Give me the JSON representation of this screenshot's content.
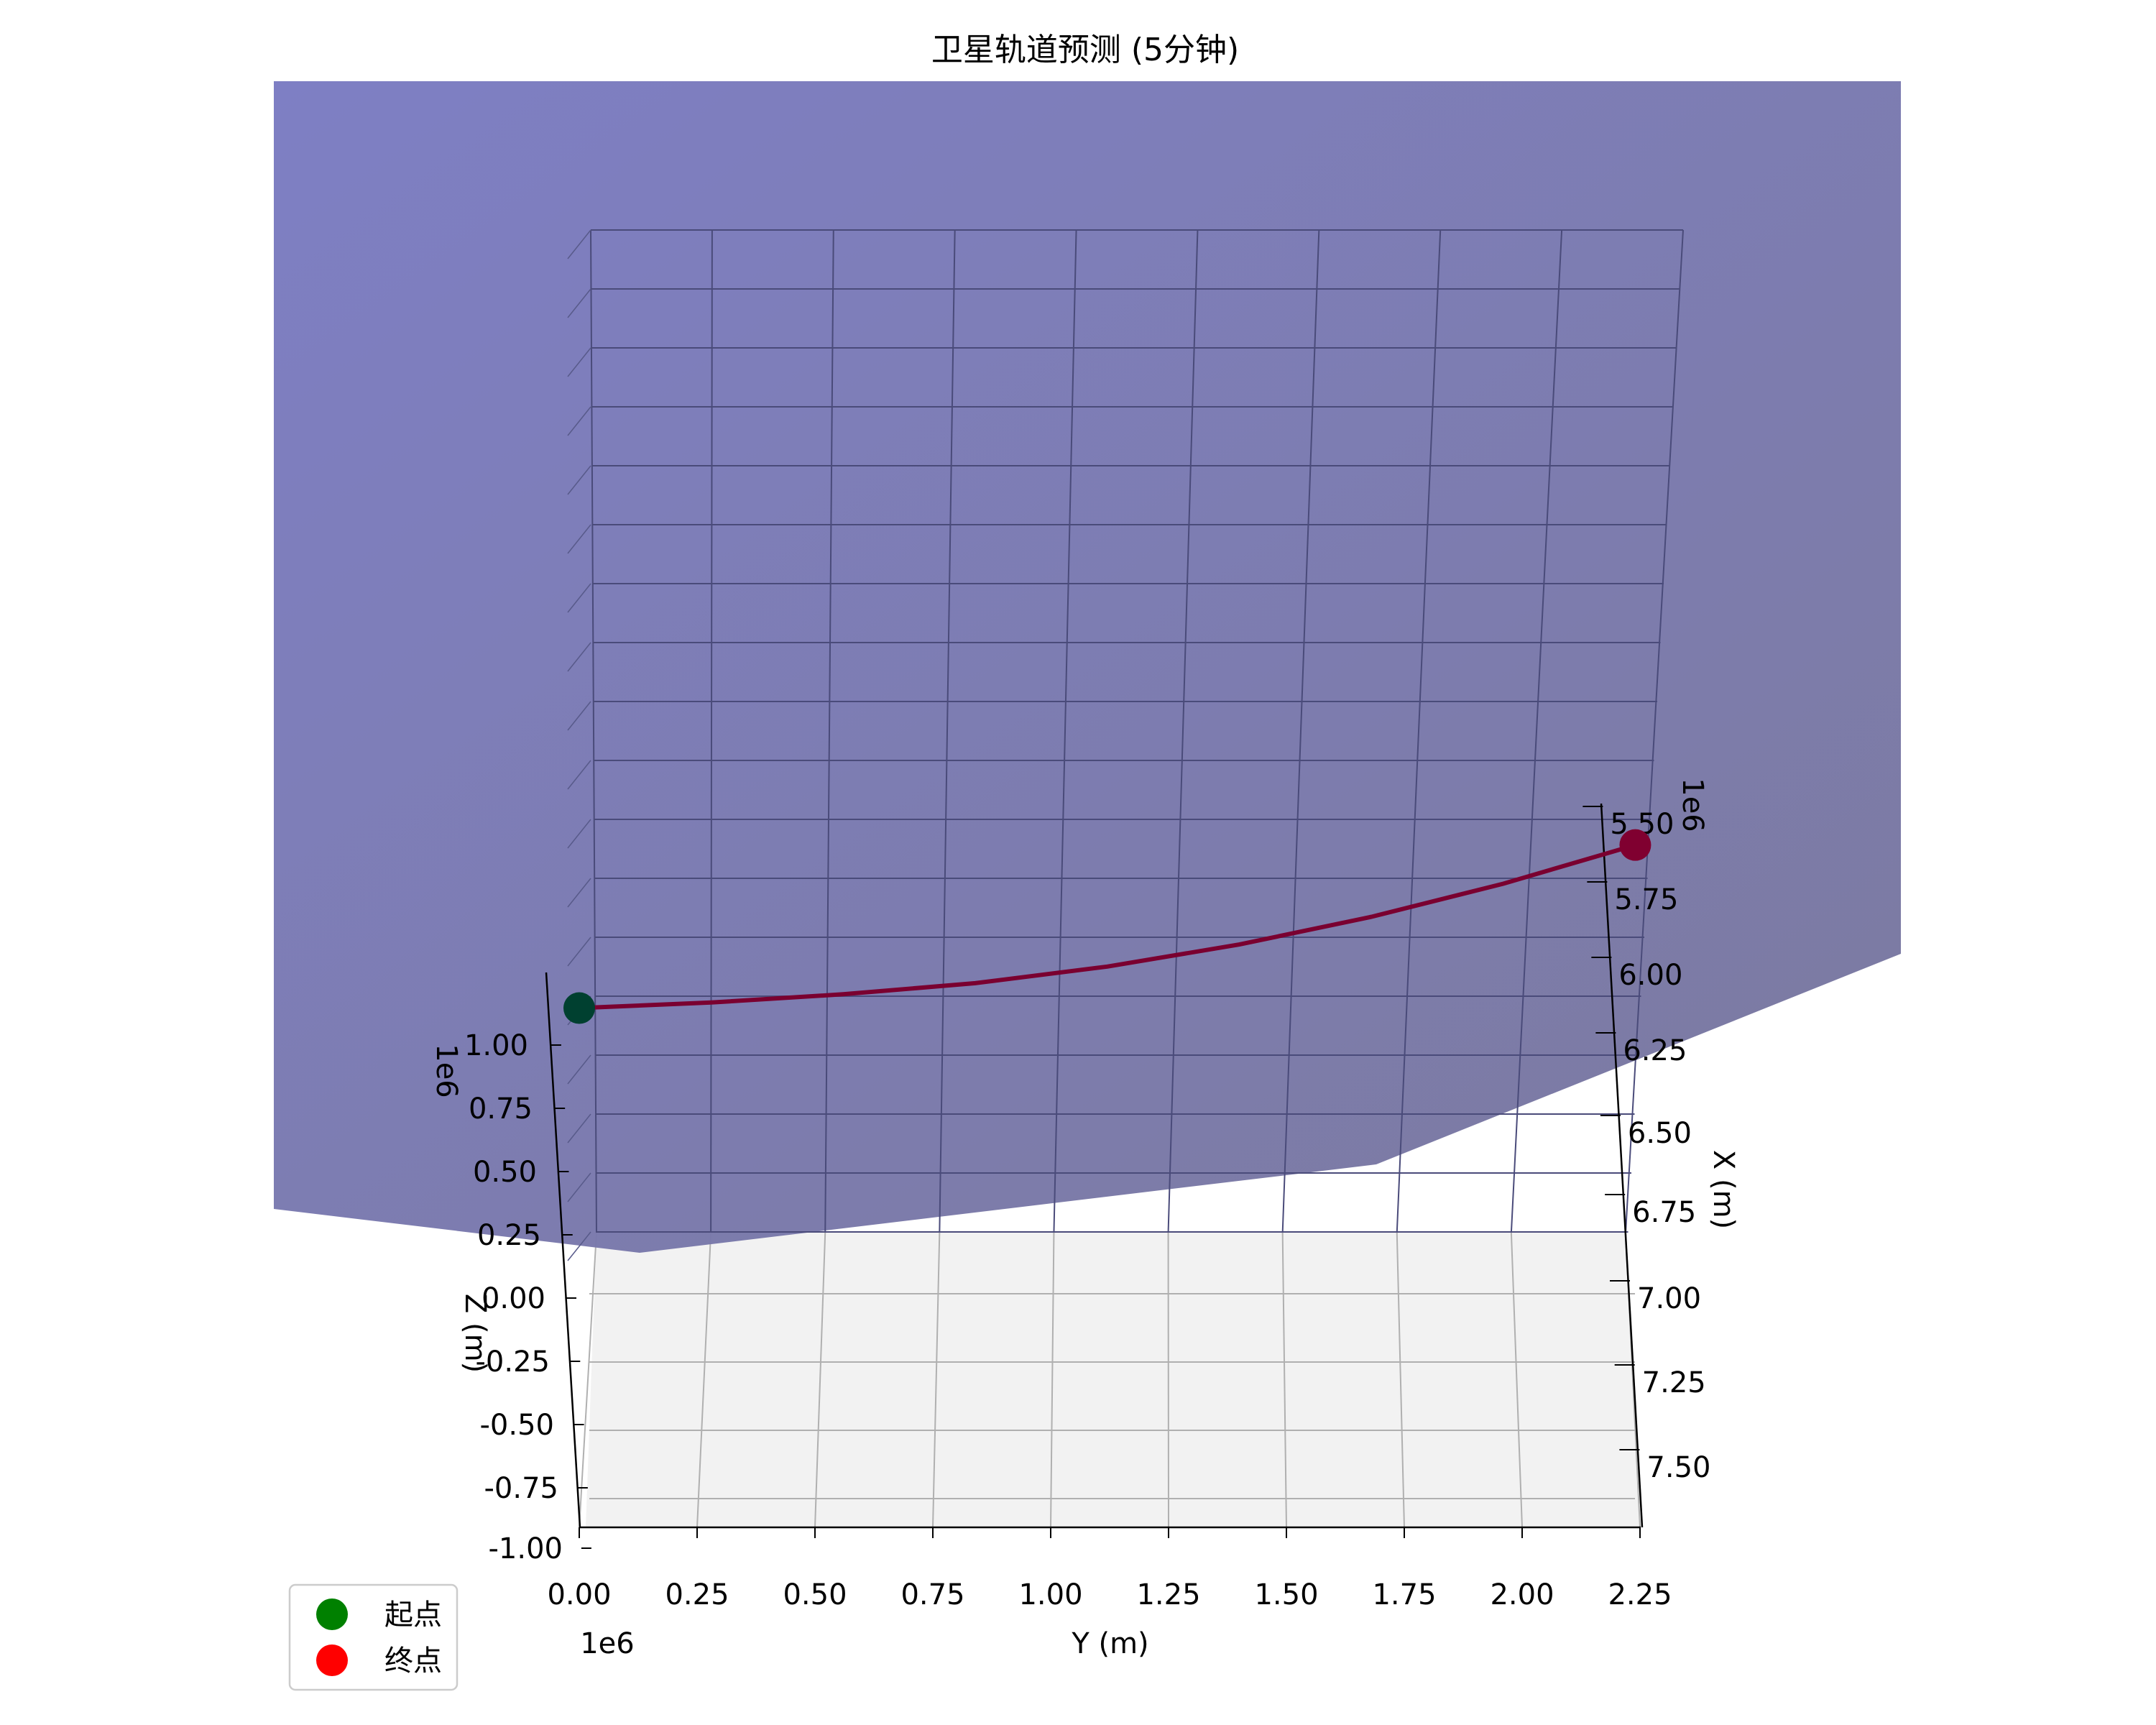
{
  "chart_data": {
    "type": "line",
    "projection": "3d",
    "title": "卫星轨道预测 (5分钟)",
    "xlabel": "X (m)",
    "ylabel": "Y (m)",
    "zlabel": "Z (m)",
    "offset_label_x": "1e6",
    "offset_label_y": "1e6",
    "offset_label_z": "1e6",
    "x_ticks": [
      "5.50",
      "5.75",
      "6.00",
      "6.25",
      "6.50",
      "6.75",
      "7.00",
      "7.25",
      "7.50"
    ],
    "y_ticks": [
      "0.00",
      "0.25",
      "0.50",
      "0.75",
      "1.00",
      "1.25",
      "1.50",
      "1.75",
      "2.00",
      "2.25"
    ],
    "z_ticks": [
      "1.00",
      "0.75",
      "0.50",
      "0.25",
      "0.00",
      "-0.25",
      "-0.50",
      "-0.75",
      "-1.00"
    ],
    "x_range": [
      5.4,
      7.6
    ],
    "y_range": [
      0.0,
      2.25
    ],
    "z_range": [
      -1.0,
      1.0
    ],
    "grid": true,
    "surface_color": "#7070b8",
    "series": [
      {
        "color": "#7a0030",
        "x": [
          6.88,
          6.84,
          6.78,
          6.7,
          6.58,
          6.42,
          6.22,
          5.98,
          5.7
        ],
        "y": [
          0.0,
          0.28,
          0.56,
          0.84,
          1.12,
          1.4,
          1.68,
          1.96,
          2.24
        ],
        "z": [
          0.0,
          0.0,
          0.0,
          0.0,
          0.0,
          0.0,
          0.0,
          0.0,
          0.0
        ]
      }
    ],
    "start_point": {
      "color": "#004030"
    },
    "end_point": {
      "color": "#800030"
    },
    "legend": {
      "position": "lower-left",
      "entries": [
        {
          "label": "起点",
          "color": "#008000"
        },
        {
          "label": "终点",
          "color": "#ff0000"
        }
      ]
    }
  }
}
